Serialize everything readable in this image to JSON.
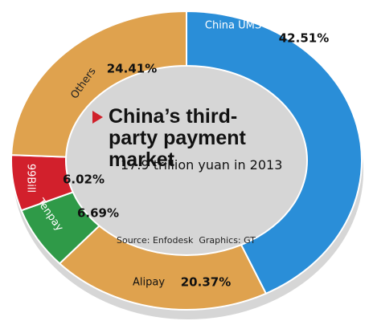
{
  "chart_data": {
    "type": "donut",
    "title": "China’s third-party payment market",
    "subtitle": "17.9 trillion yuan in 2013",
    "source": "Source: Enfodesk",
    "credit": "Graphics: GT",
    "categories": [
      "China UMS",
      "Alipay",
      "Tenpay",
      "99Bill",
      "Others"
    ],
    "values": [
      42.51,
      20.37,
      6.69,
      6.02,
      24.41
    ],
    "value_labels": [
      "42.51%",
      "20.37%",
      "6.69%",
      "6.02%",
      "24.41%"
    ],
    "colors": [
      "#2a8ed8",
      "#dfa24e",
      "#2f9a48",
      "#d2202c",
      "#dfa24e"
    ]
  }
}
